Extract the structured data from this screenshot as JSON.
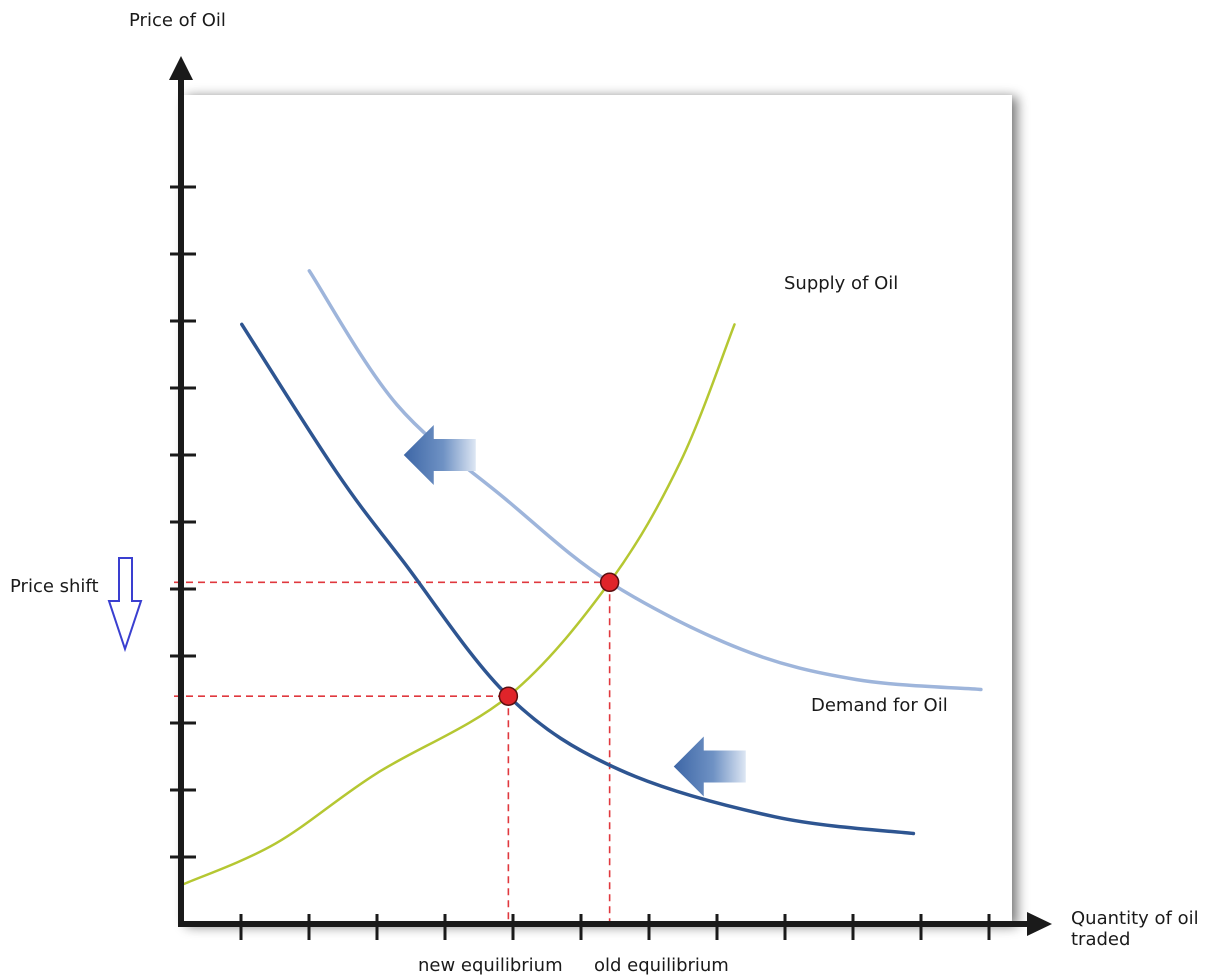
{
  "chart_data": {
    "type": "line",
    "title": "",
    "ylabel": "Price of Oil",
    "xlabel_lines": [
      "Quantity of oil",
      "traded"
    ],
    "xlim": [
      0,
      12
    ],
    "ylim": [
      0,
      12
    ],
    "grid": false,
    "x_tick_count": 12,
    "y_tick_count": 11,
    "series": [
      {
        "name": "Supply of Oil",
        "role": "supply",
        "color": "#b5c732",
        "points": [
          [
            0.05,
            0.6
          ],
          [
            1.4,
            1.2
          ],
          [
            2.9,
            2.25
          ],
          [
            4.85,
            3.4
          ],
          [
            6.35,
            5.1
          ],
          [
            7.4,
            6.9
          ],
          [
            8.2,
            8.95
          ]
        ]
      },
      {
        "name": "",
        "role": "original-demand",
        "color": "#9eb5db",
        "points": [
          [
            1.9,
            9.75
          ],
          [
            3.2,
            7.75
          ],
          [
            4.8,
            6.35
          ],
          [
            6.35,
            5.1
          ],
          [
            8.3,
            4.1
          ],
          [
            10.0,
            3.65
          ],
          [
            11.85,
            3.5
          ]
        ]
      },
      {
        "name": "Demand for Oil",
        "role": "new-demand",
        "color": "#2e5591",
        "points": [
          [
            0.9,
            8.95
          ],
          [
            2.3,
            6.75
          ],
          [
            3.3,
            5.4
          ],
          [
            4.85,
            3.4
          ],
          [
            6.5,
            2.3
          ],
          [
            8.8,
            1.6
          ],
          [
            10.85,
            1.35
          ]
        ]
      }
    ],
    "equilibria": [
      {
        "name": "old equilibrium",
        "x": 6.35,
        "y": 5.1
      },
      {
        "name": "new equilibrium",
        "x": 4.85,
        "y": 3.4
      }
    ],
    "annotations": {
      "supply_label": "Supply of Oil",
      "demand_label": "Demand for Oil",
      "price_shift": "Price shift",
      "old_equilibrium": "old equilibrium",
      "new_equilibrium": "new equilibrium"
    },
    "shift_arrows": [
      {
        "direction": "left",
        "x": 3.3,
        "y": 7.0
      },
      {
        "direction": "left",
        "x": 7.3,
        "y": 2.35
      }
    ],
    "colors": {
      "axis": "#1a1a1a",
      "dashed": "#e0383e",
      "point": "#e0242a",
      "arrow": "#3d66a6",
      "price_arrow": "#3a3fd0"
    }
  }
}
